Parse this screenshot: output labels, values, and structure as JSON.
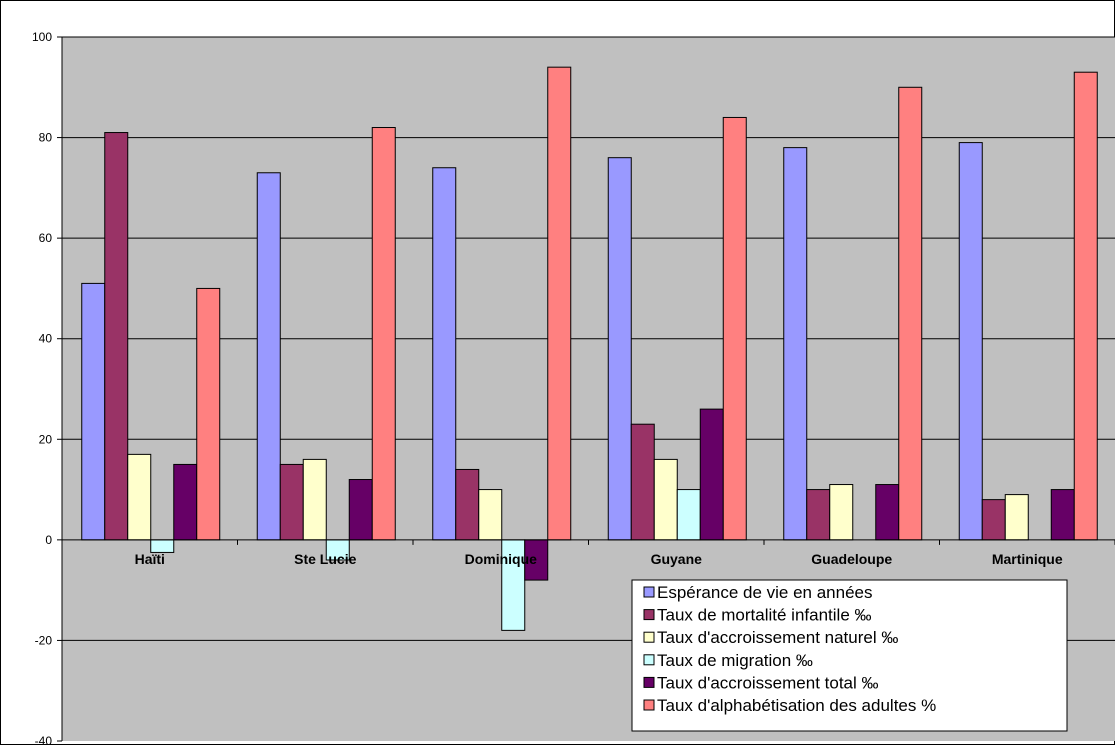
{
  "chart_data": {
    "type": "bar",
    "categories": [
      "Haïti",
      "Ste Lucie",
      "Dominique",
      "Guyane",
      "Guadeloupe",
      "Martinique"
    ],
    "series": [
      {
        "name": "Espérance de vie en années",
        "color": "#9999ff",
        "values": [
          51,
          73,
          74,
          76,
          78,
          79
        ]
      },
      {
        "name": "Taux de mortalité infantile ‰",
        "color": "#993366",
        "values": [
          81,
          15,
          14,
          23,
          10,
          8
        ]
      },
      {
        "name": "Taux  d'accroissement naturel ‰",
        "color": "#ffffcc",
        "values": [
          17,
          16,
          10,
          16,
          11,
          9
        ]
      },
      {
        "name": "Taux de  migration ‰",
        "color": "#ccffff",
        "values": [
          -2.5,
          -4,
          -18,
          10,
          null,
          null
        ]
      },
      {
        "name": "Taux  d'accroissement  total ‰",
        "color": "#660066",
        "values": [
          15,
          12,
          -8,
          26,
          11,
          10
        ]
      },
      {
        "name": "Taux  d'alphabétisation des adultes %",
        "color": "#ff8080",
        "values": [
          50,
          82,
          94,
          84,
          90,
          93
        ]
      }
    ],
    "ylim": [
      -40,
      100
    ],
    "yticks": [
      -40,
      -20,
      0,
      20,
      40,
      60,
      80,
      100
    ],
    "grid": true,
    "plot_background": "#c0c0c0",
    "legend_position": "bottom-right",
    "title": "",
    "xlabel": "",
    "ylabel": ""
  }
}
